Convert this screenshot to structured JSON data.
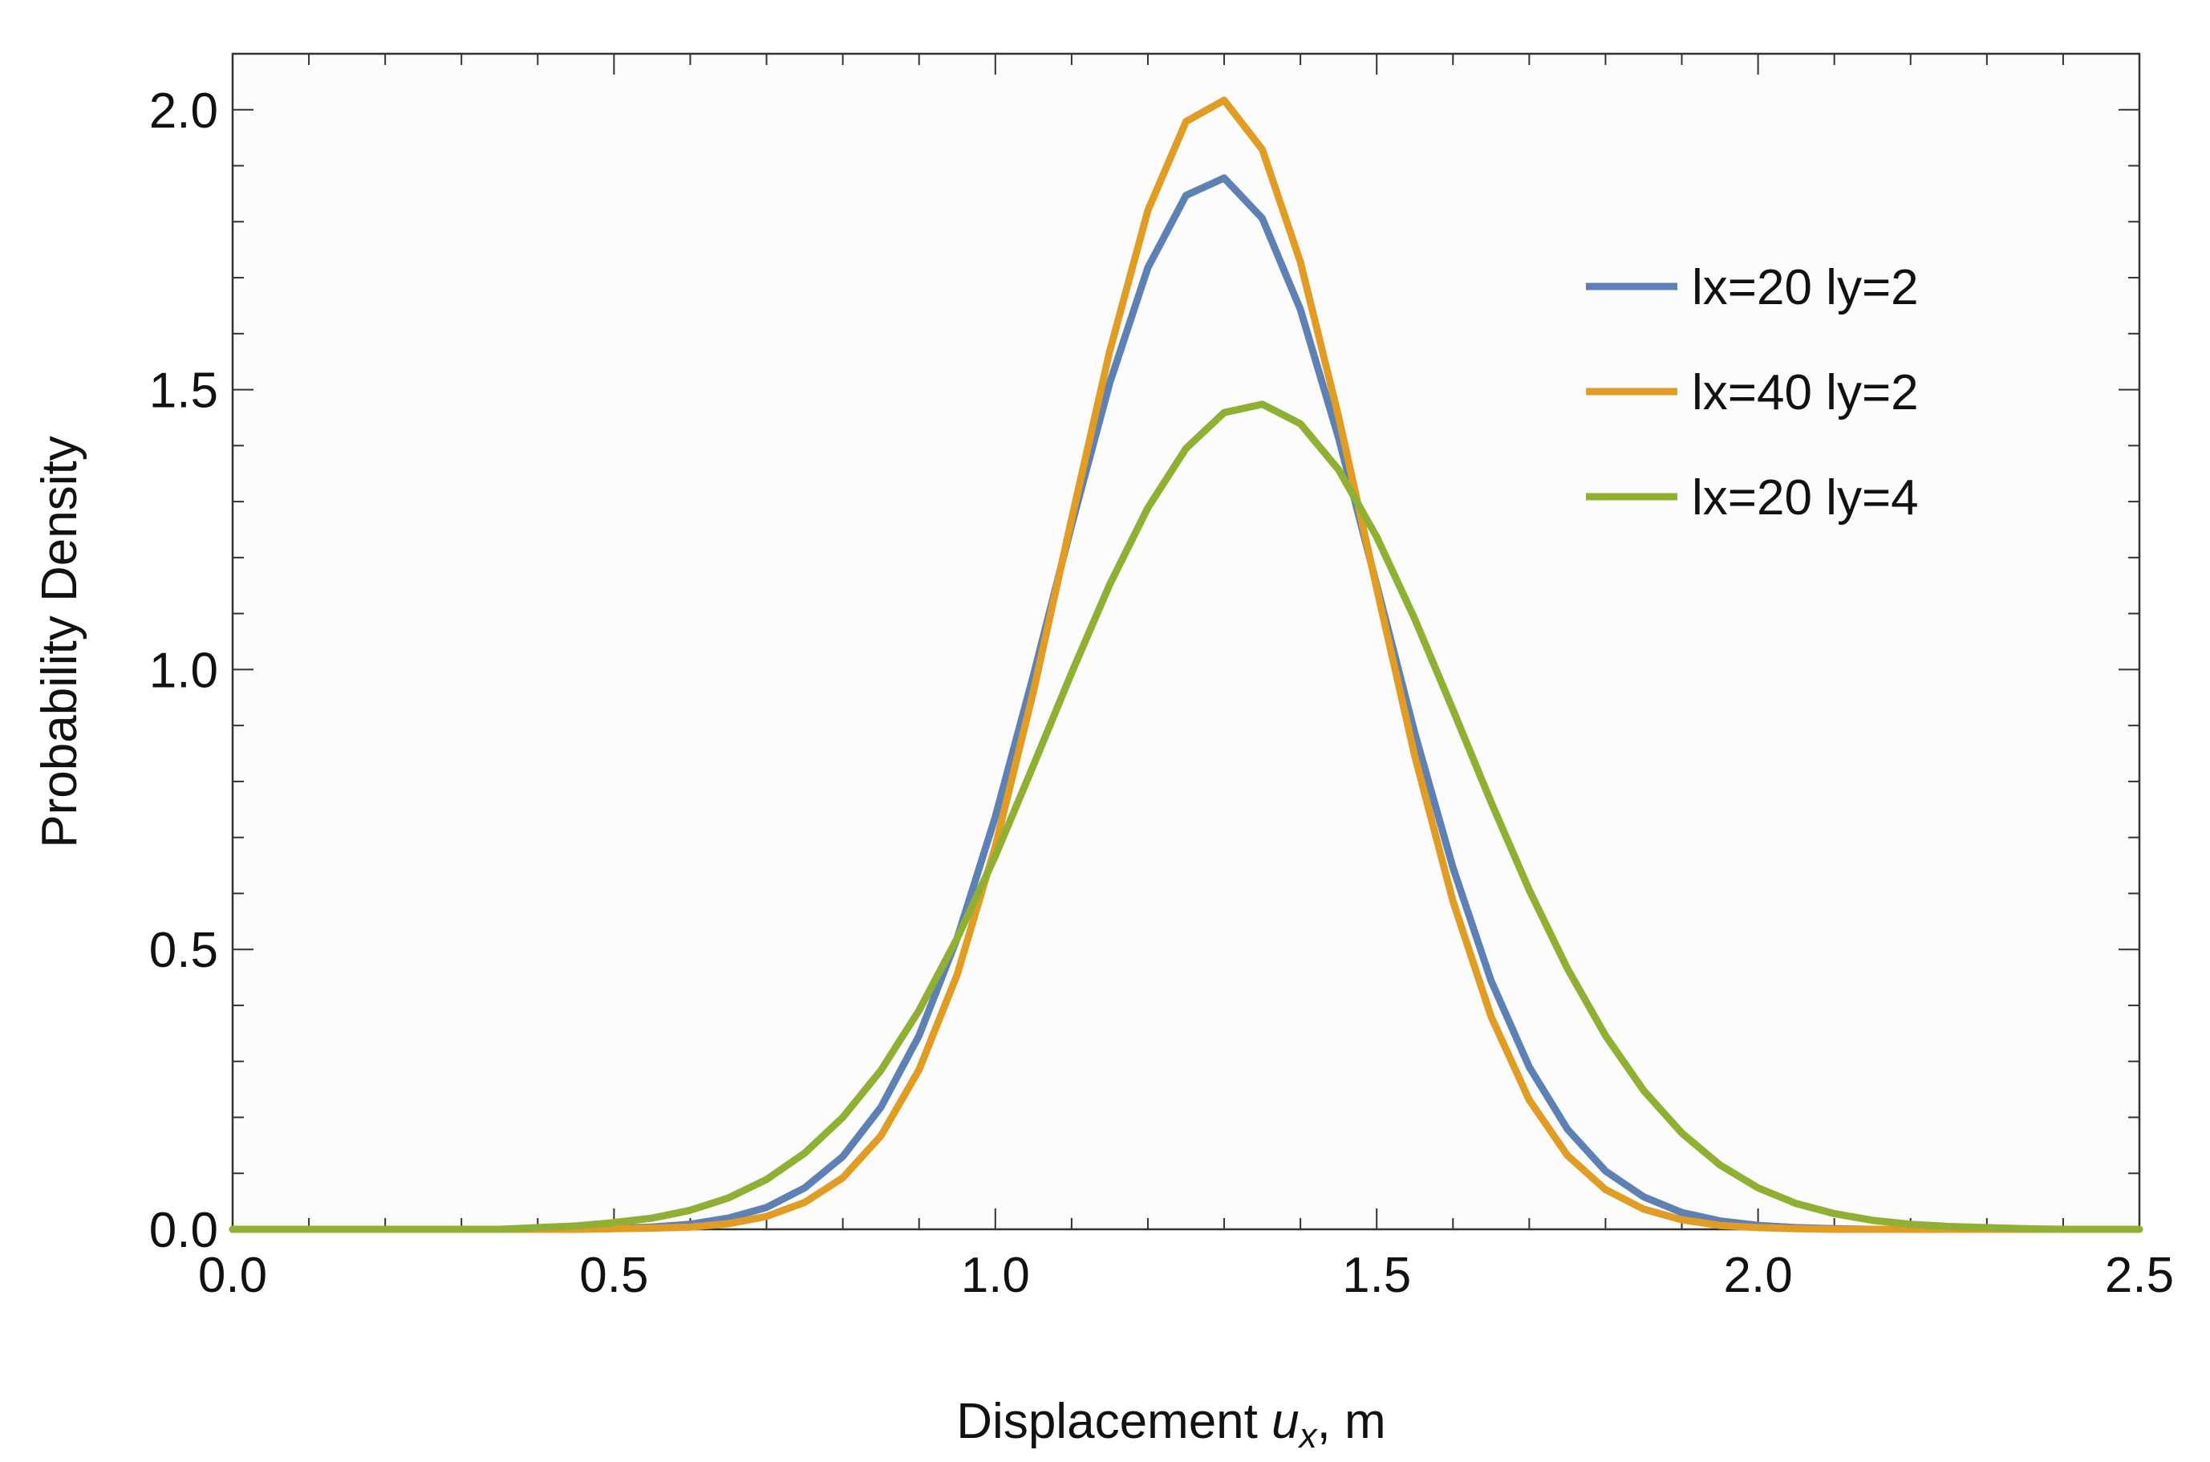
{
  "chart_data": {
    "type": "line",
    "x_label_parts": [
      "Displacement ",
      "u",
      "x",
      ", m"
    ],
    "y_label": "Probability Density",
    "x": [
      0,
      0.05,
      0.1,
      0.15,
      0.2,
      0.25,
      0.3,
      0.35,
      0.4,
      0.45,
      0.5,
      0.55,
      0.6,
      0.65,
      0.7,
      0.75,
      0.8,
      0.85,
      0.9,
      0.95,
      1.0,
      1.05,
      1.1,
      1.15,
      1.2,
      1.25,
      1.3,
      1.35,
      1.4,
      1.45,
      1.5,
      1.55,
      1.6,
      1.65,
      1.7,
      1.75,
      1.8,
      1.85,
      1.9,
      1.95,
      2.0,
      2.05,
      2.1,
      2.15,
      2.2,
      2.25,
      2.3,
      2.35,
      2.4,
      2.45,
      2.5
    ],
    "series": [
      {
        "name": "lx=20 ly=2",
        "color": "#5e81b5",
        "values": [
          0,
          0,
          0,
          0,
          0,
          0,
          0,
          0,
          0,
          0,
          0.002,
          0.004,
          0.009,
          0.02,
          0.039,
          0.074,
          0.13,
          0.218,
          0.346,
          0.52,
          0.737,
          0.99,
          1.258,
          1.512,
          1.718,
          1.847,
          1.878,
          1.806,
          1.643,
          1.414,
          1.151,
          0.886,
          0.646,
          0.444,
          0.29,
          0.179,
          0.104,
          0.058,
          0.03,
          0.015,
          0.007,
          0.003,
          0.001,
          0,
          0,
          0,
          0,
          0,
          0,
          0,
          0
        ]
      },
      {
        "name": "lx=40 ly=2",
        "color": "#e19c24",
        "values": [
          0,
          0,
          0,
          0,
          0,
          0,
          0,
          0,
          0,
          0,
          0.001,
          0.002,
          0.004,
          0.01,
          0.023,
          0.048,
          0.092,
          0.167,
          0.285,
          0.455,
          0.684,
          0.961,
          1.269,
          1.569,
          1.82,
          1.979,
          2.017,
          1.929,
          1.728,
          1.452,
          1.145,
          0.845,
          0.586,
          0.38,
          0.231,
          0.132,
          0.071,
          0.036,
          0.017,
          0.007,
          0.003,
          0.001,
          0,
          0,
          0,
          0,
          0,
          0,
          0,
          0,
          0
        ]
      },
      {
        "name": "lx=20 ly=4",
        "color": "#8fb032",
        "values": [
          0,
          0,
          0,
          0,
          0,
          0,
          0,
          0,
          0.003,
          0.006,
          0.012,
          0.02,
          0.034,
          0.056,
          0.089,
          0.136,
          0.2,
          0.284,
          0.391,
          0.52,
          0.667,
          0.829,
          0.994,
          1.152,
          1.289,
          1.395,
          1.459,
          1.474,
          1.439,
          1.357,
          1.237,
          1.09,
          0.928,
          0.763,
          0.606,
          0.466,
          0.346,
          0.248,
          0.172,
          0.115,
          0.074,
          0.046,
          0.028,
          0.016,
          0.009,
          0.005,
          0.003,
          0.001,
          0,
          0,
          0
        ]
      }
    ],
    "xlim": [
      0,
      2.5
    ],
    "ylim": [
      0,
      2.1
    ],
    "xticks": [
      {
        "value": 0,
        "label": "0.0"
      },
      0.5,
      {
        "value": 1,
        "label": "1.0"
      },
      1.5,
      {
        "value": 2,
        "label": "2.0"
      },
      2.5
    ],
    "yticks": [
      {
        "value": 0,
        "label": "0.0"
      },
      0.5,
      {
        "value": 1,
        "label": "1.0"
      },
      1.5,
      {
        "value": 2,
        "label": "2.0"
      }
    ],
    "xminorticks": [
      0.1,
      0.2,
      0.3,
      0.4,
      0.6,
      0.7,
      0.8,
      0.9,
      1.1,
      1.2,
      1.3,
      1.4,
      1.6,
      1.7,
      1.8,
      1.9,
      2.1,
      2.2,
      2.3,
      2.4
    ],
    "yminorticks": [
      0.1,
      0.2,
      0.3,
      0.4,
      0.6,
      0.7,
      0.8,
      0.9,
      1.1,
      1.2,
      1.3,
      1.4,
      1.6,
      1.7,
      1.8,
      1.9
    ],
    "legend": "upper right",
    "grid": false
  }
}
